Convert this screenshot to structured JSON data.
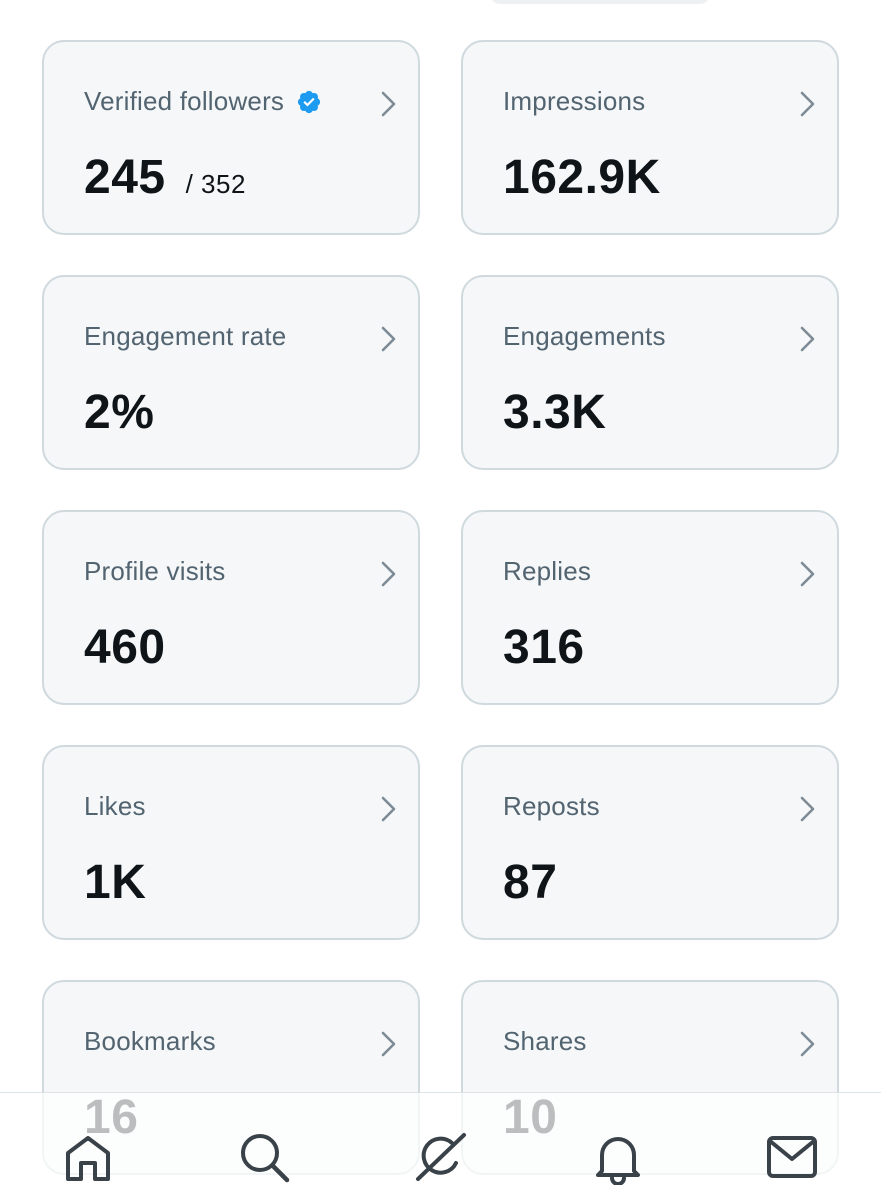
{
  "cards": [
    {
      "label": "Verified followers",
      "value": "245",
      "of": "/ 352",
      "verified": true
    },
    {
      "label": "Impressions",
      "value": "162.9K"
    },
    {
      "label": "Engagement rate",
      "value": "2%"
    },
    {
      "label": "Engagements",
      "value": "3.3K"
    },
    {
      "label": "Profile visits",
      "value": "460"
    },
    {
      "label": "Replies",
      "value": "316"
    },
    {
      "label": "Likes",
      "value": "1K"
    },
    {
      "label": "Reposts",
      "value": "87"
    },
    {
      "label": "Bookmarks",
      "value": "16"
    },
    {
      "label": "Shares",
      "value": "10"
    }
  ],
  "nav": [
    {
      "icon": "home-icon"
    },
    {
      "icon": "search-icon"
    },
    {
      "icon": "grok-icon"
    },
    {
      "icon": "bell-icon"
    },
    {
      "icon": "mail-icon"
    }
  ],
  "colors": {
    "card_bg": "#f5f7f8",
    "card_border": "#cfd9de",
    "label": "#536471",
    "value": "#0f1419",
    "verified": "#1d9bf0"
  }
}
